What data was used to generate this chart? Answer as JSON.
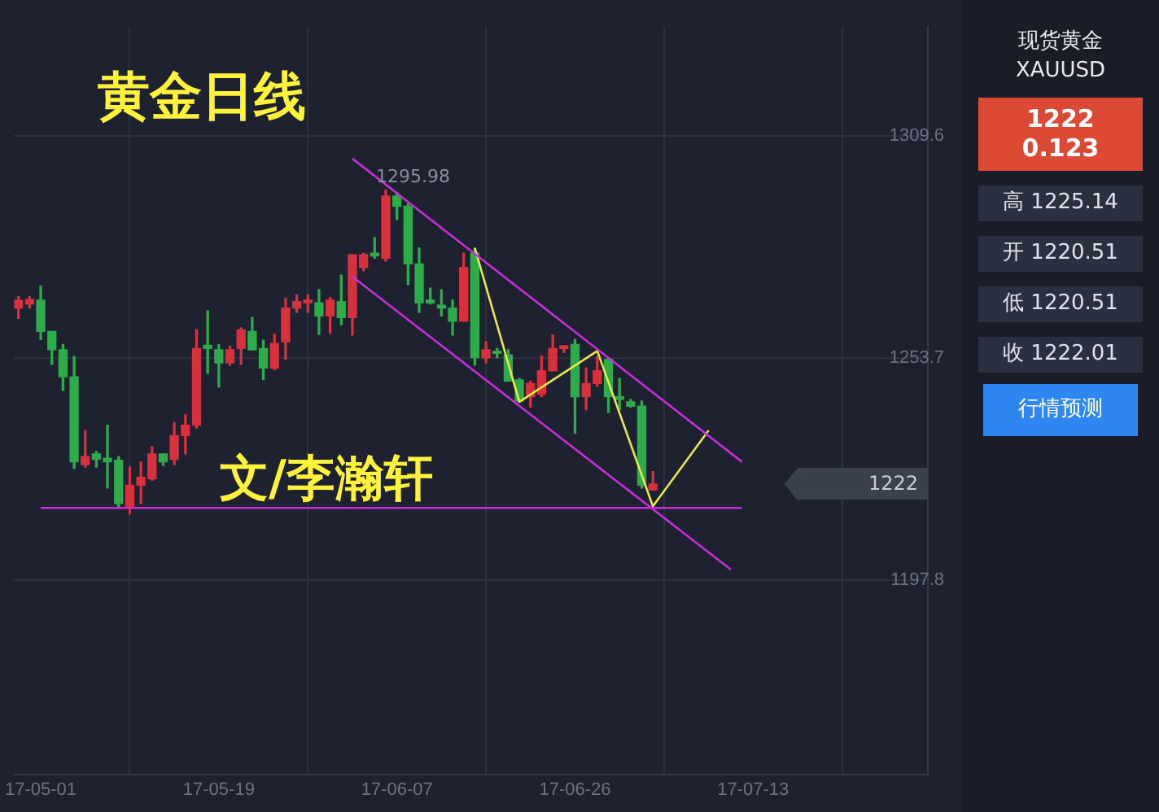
{
  "chart_data": [
    {
      "type": "candlestick",
      "title": "黄金日线",
      "annotations": [
        "文/李瀚轩",
        "1295.98",
        "1222"
      ],
      "categories": [
        null,
        null,
        "17-05-01",
        null,
        null,
        null,
        null,
        null,
        null,
        null,
        null,
        null,
        null,
        null,
        null,
        null,
        null,
        null,
        "17-05-19",
        null,
        null,
        null,
        null,
        null,
        null,
        null,
        null,
        null,
        null,
        null,
        null,
        null,
        null,
        null,
        "17-06-07",
        null,
        null,
        null,
        null,
        null,
        null,
        null,
        null,
        null,
        null,
        null,
        null,
        null,
        null,
        null,
        "17-06-26",
        null,
        null,
        null,
        null,
        null,
        null,
        null,
        null,
        null,
        null,
        null,
        null,
        null,
        null,
        null,
        "17-07-13",
        null,
        null,
        null,
        null,
        null,
        null,
        null,
        null,
        null,
        null,
        null,
        null,
        null,
        null
      ],
      "ohlc": [
        [
          1266.3,
          1269.2,
          1263.7,
          1268.3
        ],
        [
          1267.3,
          1269.2,
          1266.3,
          1268.5
        ],
        [
          1268.3,
          1271.8,
          1258.4,
          1260.4
        ],
        [
          1260.4,
          1260.4,
          1252.1,
          1255.8
        ],
        [
          1255.8,
          1257.1,
          1245.6,
          1249.0
        ],
        [
          1249.0,
          1254.1,
          1225.9,
          1227.6
        ],
        [
          1226.9,
          1235.5,
          1226.3,
          1228.9
        ],
        [
          1229.6,
          1230.2,
          1226.3,
          1228.2
        ],
        [
          1228.5,
          1236.8,
          1221.0,
          1227.6
        ],
        [
          1228.0,
          1228.9,
          1216.4,
          1217.1
        ],
        [
          1216.4,
          1226.3,
          1214.5,
          1221.7
        ],
        [
          1221.7,
          1227.6,
          1217.1,
          1223.7
        ],
        [
          1223.3,
          1231.5,
          1223.0,
          1229.6
        ],
        [
          1229.6,
          1229.6,
          1226.7,
          1227.6
        ],
        [
          1228.2,
          1237.4,
          1226.9,
          1234.2
        ],
        [
          1234.2,
          1239.4,
          1229.6,
          1236.8
        ],
        [
          1236.8,
          1260.8,
          1236.1,
          1256.1
        ],
        [
          1256.9,
          1265.6,
          1249.9,
          1256.1
        ],
        [
          1255.8,
          1257.1,
          1246.4,
          1252.5
        ],
        [
          1252.5,
          1256.7,
          1251.9,
          1255.8
        ],
        [
          1256.1,
          1261.3,
          1252.1,
          1260.8
        ],
        [
          1260.4,
          1263.9,
          1255.8,
          1255.8
        ],
        [
          1256.1,
          1258.2,
          1248.3,
          1251.2
        ],
        [
          1251.2,
          1259.7,
          1250.8,
          1257.4
        ],
        [
          1257.8,
          1268.7,
          1253.4,
          1266.3
        ],
        [
          1266.3,
          1269.6,
          1265.2,
          1267.9
        ],
        [
          1267.6,
          1269.6,
          1265.2,
          1268.3
        ],
        [
          1267.6,
          1270.9,
          1259.7,
          1264.3
        ],
        [
          1264.3,
          1268.9,
          1260.0,
          1268.3
        ],
        [
          1267.9,
          1274.6,
          1262.1,
          1263.9
        ],
        [
          1263.9,
          1279.7,
          1259.5,
          1279.7
        ],
        [
          1276.5,
          1280.1,
          1275.7,
          1279.7
        ],
        [
          1280.1,
          1284.0,
          1278.8,
          1279.4
        ],
        [
          1278.8,
          1295.98,
          1278.1,
          1294.5
        ],
        [
          1294.5,
          1295.4,
          1288.6,
          1291.9
        ],
        [
          1291.9,
          1292.5,
          1272.2,
          1277.4
        ],
        [
          1277.4,
          1281.4,
          1265.2,
          1267.6
        ],
        [
          1268.3,
          1271.3,
          1267.3,
          1267.6
        ],
        [
          1267.0,
          1270.9,
          1264.3,
          1266.3
        ],
        [
          1266.3,
          1268.3,
          1259.5,
          1263.0
        ],
        [
          1263.0,
          1280.1,
          1263.0,
          1276.5
        ],
        [
          1280.1,
          1281.4,
          1251.9,
          1253.8
        ],
        [
          1253.8,
          1257.8,
          1252.5,
          1255.8
        ],
        [
          1255.4,
          1256.1,
          1253.8,
          1254.9
        ],
        [
          1254.5,
          1255.8,
          1247.9,
          1247.9
        ],
        [
          1248.2,
          1248.6,
          1242.7,
          1242.9
        ],
        [
          1244.0,
          1247.9,
          1241.4,
          1247.3
        ],
        [
          1244.6,
          1254.2,
          1244.0,
          1250.5
        ],
        [
          1250.5,
          1259.5,
          1250.5,
          1256.1
        ],
        [
          1256.1,
          1256.8,
          1255.1,
          1256.8
        ],
        [
          1257.1,
          1258.4,
          1234.8,
          1244.0
        ],
        [
          1244.0,
          1251.2,
          1240.7,
          1247.3
        ],
        [
          1247.3,
          1254.2,
          1246.6,
          1250.5
        ],
        [
          1253.4,
          1253.8,
          1240.0,
          1244.0
        ],
        [
          1244.0,
          1248.6,
          1240.7,
          1243.3
        ],
        [
          1242.7,
          1243.3,
          1241.4,
          1241.6
        ],
        [
          1241.6,
          1242.9,
          1221.0,
          1221.7
        ],
        [
          1220.51,
          1225.14,
          1220.51,
          1222.01
        ],
        null,
        null,
        null,
        null,
        null,
        null,
        null,
        null,
        null,
        null,
        null,
        null,
        null,
        null,
        null,
        null,
        null,
        null,
        null,
        null,
        null,
        null,
        null
      ],
      "colors": [
        "#d8313d",
        "#d8313d",
        "#2eab4a",
        "#2eab4a",
        "#2eab4a",
        "#2eab4a",
        "#d8313d",
        "#2eab4a",
        "#2eab4a",
        "#2eab4a",
        "#d8313d",
        "#d8313d",
        "#d8313d",
        "#2eab4a",
        "#d8313d",
        "#d8313d",
        "#d8313d",
        "#2eab4a",
        "#2eab4a",
        "#d8313d",
        "#d8313d",
        "#2eab4a",
        "#2eab4a",
        "#d8313d",
        "#d8313d",
        "#d8313d",
        "#d8313d",
        "#2eab4a",
        "#d8313d",
        "#2eab4a",
        "#d8313d",
        "#d8313d",
        "#2eab4a",
        "#d8313d",
        "#2eab4a",
        "#2eab4a",
        "#2eab4a",
        "#2eab4a",
        "#2eab4a",
        "#2eab4a",
        "#d8313d",
        "#2eab4a",
        "#d8313d",
        "#2eab4a",
        "#2eab4a",
        "#2eab4a",
        "#d8313d",
        "#d8313d",
        "#d8313d",
        "#d8313d",
        "#2eab4a",
        "#d8313d",
        "#d8313d",
        "#2eab4a",
        "#2eab4a",
        "#2eab4a",
        "#2eab4a",
        "#d8313d",
        null,
        null,
        null,
        null,
        null,
        null,
        null,
        null,
        null,
        null,
        null,
        null,
        null,
        null,
        null,
        null,
        null,
        null,
        null,
        null,
        null,
        null,
        null
      ],
      "series": [
        {
          "type": "line",
          "color": "#c62fd6",
          "values": [
            null,
            null,
            null,
            null,
            null,
            null,
            null,
            null,
            null,
            null,
            null,
            null,
            null,
            null,
            null,
            null,
            null,
            null,
            null,
            null,
            null,
            null,
            null,
            null,
            null,
            null,
            null,
            null,
            null,
            null,
            1303.9,
            null,
            null,
            null,
            null,
            null,
            null,
            null,
            null,
            null,
            null,
            null,
            null,
            null,
            null,
            null,
            null,
            null,
            null,
            null,
            null,
            null,
            null,
            null,
            null,
            null,
            null,
            null,
            null,
            null,
            null,
            null,
            null,
            null,
            null,
            1227.6,
            null,
            null,
            null,
            null,
            null,
            null,
            null,
            null,
            null,
            null,
            null,
            null,
            null,
            null,
            null
          ]
        },
        {
          "type": "line",
          "color": "#c62fd6",
          "values": [
            null,
            null,
            null,
            null,
            null,
            null,
            null,
            null,
            null,
            null,
            null,
            null,
            null,
            null,
            null,
            null,
            null,
            null,
            null,
            null,
            null,
            null,
            null,
            null,
            null,
            null,
            null,
            null,
            null,
            null,
            1274.2,
            null,
            null,
            null,
            null,
            null,
            null,
            null,
            null,
            null,
            null,
            null,
            null,
            null,
            null,
            null,
            null,
            null,
            null,
            null,
            null,
            null,
            null,
            null,
            null,
            null,
            null,
            null,
            null,
            null,
            null,
            null,
            null,
            null,
            1200.5,
            null,
            null,
            null,
            null,
            null,
            null,
            null,
            null,
            null,
            null,
            null,
            null,
            null,
            null,
            null,
            null
          ]
        },
        {
          "type": "line",
          "color": "#c62fd6",
          "values": [
            null,
            null,
            1216.0,
            null,
            null,
            null,
            null,
            null,
            null,
            null,
            null,
            null,
            null,
            null,
            null,
            null,
            null,
            null,
            null,
            null,
            null,
            null,
            null,
            null,
            null,
            null,
            null,
            null,
            null,
            null,
            null,
            null,
            null,
            null,
            null,
            null,
            null,
            null,
            null,
            null,
            null,
            null,
            null,
            null,
            null,
            null,
            null,
            null,
            null,
            null,
            null,
            null,
            null,
            null,
            null,
            null,
            null,
            null,
            null,
            null,
            null,
            null,
            null,
            null,
            null,
            1216.0,
            null,
            null,
            null,
            null,
            null,
            null,
            null,
            null,
            null,
            null,
            null,
            null,
            null,
            null,
            null
          ]
        },
        {
          "type": "line",
          "color": "#e8e84a",
          "values": [
            null,
            null,
            null,
            null,
            null,
            null,
            null,
            null,
            null,
            null,
            null,
            null,
            null,
            null,
            null,
            null,
            null,
            null,
            null,
            null,
            null,
            null,
            null,
            null,
            null,
            null,
            null,
            null,
            null,
            null,
            null,
            null,
            null,
            null,
            null,
            null,
            null,
            null,
            null,
            null,
            null,
            1281.4,
            null,
            null,
            null,
            1242.7,
            null,
            null,
            null,
            null,
            null,
            null,
            1255.5,
            null,
            null,
            null,
            null,
            1216.4,
            null,
            null,
            null,
            null,
            1235.5,
            null,
            null,
            null,
            null,
            null,
            null,
            null,
            null,
            null,
            null,
            null,
            null,
            null,
            null,
            null,
            null,
            null,
            null
          ]
        }
      ],
      "ylim": [
        1149,
        1337
      ],
      "yticks": [
        1197.8,
        1253.7,
        1309.6
      ],
      "grid": true,
      "legend": false
    },
    {
      "type": "other",
      "title": "现货黄金",
      "subtitle": "XAUUSD",
      "annotations": [
        "1222",
        "0.123",
        "高 1225.14",
        "开 1220.51",
        "低 1220.51",
        "收 1222.01",
        "行情预测"
      ]
    }
  ]
}
